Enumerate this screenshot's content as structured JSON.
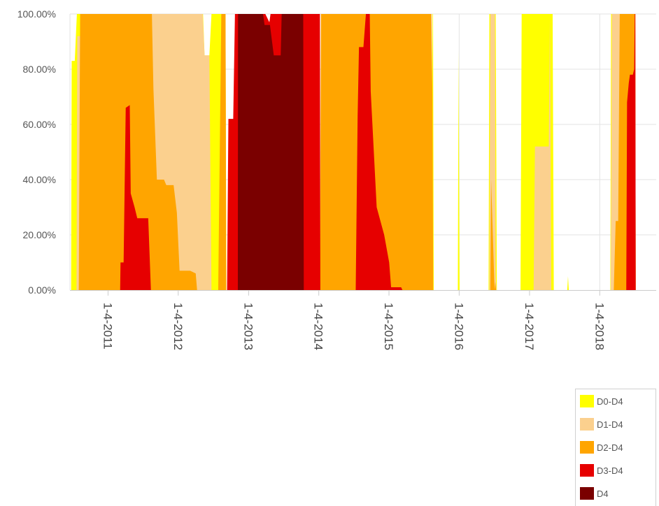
{
  "chart_data": {
    "type": "area",
    "stacking": "overlapping percent areas (each series drawn from 0%)",
    "x_axis": {
      "type": "date",
      "tick_labels": [
        "1-4-2011",
        "1-4-2012",
        "1-4-2013",
        "1-4-2014",
        "1-4-2015",
        "1-4-2016",
        "1-4-2017",
        "1-4-2018",
        "1-4-2019"
      ],
      "range": [
        "2010-06-20",
        "2019-04-01"
      ]
    },
    "y_axis": {
      "tick_labels": [
        "0.00%",
        "20.00%",
        "40.00%",
        "60.00%",
        "80.00%",
        "100.00%"
      ],
      "ylim": [
        0,
        100
      ],
      "unit": "%"
    },
    "grid": true,
    "legend_position": "bottom-right",
    "series": [
      {
        "name": "D0-D4",
        "color": "#ffff00",
        "points": [
          [
            "2010-06-20",
            0
          ],
          [
            "2010-06-26",
            0
          ],
          [
            "2010-06-29",
            83
          ],
          [
            "2010-07-15",
            83
          ],
          [
            "2010-07-26",
            100
          ],
          [
            "2012-02-16",
            100
          ],
          [
            "2012-03-01",
            85
          ],
          [
            "2012-04-18",
            85
          ],
          [
            "2012-04-26",
            100
          ],
          [
            "2012-05-12",
            100
          ],
          [
            "2012-05-20",
            85
          ],
          [
            "2012-06-14",
            85
          ],
          [
            "2012-06-25",
            100
          ],
          [
            "2012-09-06",
            100
          ],
          [
            "2012-09-10",
            0
          ],
          [
            "2015-08-13",
            0
          ],
          [
            "2015-08-18",
            100
          ],
          [
            "2015-08-21",
            100
          ],
          [
            "2015-08-25",
            0
          ],
          [
            "2015-12-28",
            0
          ],
          [
            "2016-01-01",
            87
          ],
          [
            "2016-01-06",
            0
          ],
          [
            "2016-06-05",
            0
          ],
          [
            "2016-06-09",
            100
          ],
          [
            "2016-07-12",
            100
          ],
          [
            "2016-07-18",
            0
          ],
          [
            "2016-11-18",
            0
          ],
          [
            "2016-11-24",
            100
          ],
          [
            "2017-05-04",
            100
          ],
          [
            "2017-05-10",
            0
          ],
          [
            "2017-07-19",
            0
          ],
          [
            "2017-07-23",
            5
          ],
          [
            "2017-07-27",
            0
          ],
          [
            "2018-02-28",
            0
          ],
          [
            "2018-03-04",
            100
          ],
          [
            "2018-07-08",
            100
          ],
          [
            "2018-07-10",
            0
          ],
          [
            "2019-04-01",
            0
          ]
        ]
      },
      {
        "name": "D1-D4",
        "color": "#fbd08e",
        "points": [
          [
            "2010-06-20",
            0
          ],
          [
            "2010-07-24",
            0
          ],
          [
            "2010-07-28",
            92
          ],
          [
            "2010-08-26",
            92
          ],
          [
            "2010-09-02",
            100
          ],
          [
            "2012-05-10",
            100
          ],
          [
            "2012-05-20",
            85
          ],
          [
            "2012-06-14",
            85
          ],
          [
            "2012-06-25",
            0
          ],
          [
            "2012-09-06",
            0
          ],
          [
            "2012-09-10",
            0
          ],
          [
            "2016-06-09",
            0
          ],
          [
            "2016-06-14",
            100
          ],
          [
            "2016-07-08",
            100
          ],
          [
            "2016-07-12",
            5
          ],
          [
            "2016-07-16",
            0
          ],
          [
            "2017-01-25",
            0
          ],
          [
            "2017-02-01",
            52
          ],
          [
            "2017-04-14",
            52
          ],
          [
            "2017-04-20",
            100
          ],
          [
            "2017-04-27",
            0
          ],
          [
            "2018-03-02",
            0
          ],
          [
            "2018-03-08",
            100
          ],
          [
            "2018-07-08",
            100
          ],
          [
            "2018-07-10",
            0
          ],
          [
            "2019-04-01",
            0
          ]
        ]
      },
      {
        "name": "D2-D4",
        "color": "#ffa500",
        "points": [
          [
            "2010-06-20",
            0
          ],
          [
            "2010-08-05",
            0
          ],
          [
            "2010-08-12",
            100
          ],
          [
            "2011-08-20",
            100
          ],
          [
            "2011-08-28",
            73
          ],
          [
            "2011-09-15",
            40
          ],
          [
            "2011-10-22",
            40
          ],
          [
            "2011-11-03",
            38
          ],
          [
            "2011-12-11",
            38
          ],
          [
            "2011-12-28",
            28
          ],
          [
            "2012-01-11",
            7
          ],
          [
            "2012-03-06",
            7
          ],
          [
            "2012-04-04",
            6
          ],
          [
            "2012-04-11",
            0
          ],
          [
            "2012-07-30",
            0
          ],
          [
            "2012-08-15",
            100
          ],
          [
            "2012-09-06",
            100
          ],
          [
            "2012-09-10",
            0
          ],
          [
            "2014-01-10",
            0
          ],
          [
            "2014-01-15",
            100
          ],
          [
            "2015-08-13",
            100
          ],
          [
            "2015-08-18",
            70
          ],
          [
            "2015-08-22",
            0
          ],
          [
            "2016-06-14",
            0
          ],
          [
            "2016-06-18",
            40
          ],
          [
            "2016-07-06",
            0
          ],
          [
            "2016-07-10",
            3
          ],
          [
            "2016-07-14",
            0
          ],
          [
            "2018-03-18",
            0
          ],
          [
            "2018-03-28",
            25
          ],
          [
            "2018-04-10",
            25
          ],
          [
            "2018-04-18",
            100
          ],
          [
            "2018-07-08",
            100
          ],
          [
            "2018-07-10",
            0
          ],
          [
            "2019-04-01",
            0
          ]
        ]
      },
      {
        "name": "D3-D4",
        "color": "#e60000",
        "points": [
          [
            "2010-06-20",
            0
          ],
          [
            "2011-03-08",
            0
          ],
          [
            "2011-03-10",
            10
          ],
          [
            "2011-03-26",
            10
          ],
          [
            "2011-04-06",
            66
          ],
          [
            "2011-04-27",
            67
          ],
          [
            "2011-05-02",
            35
          ],
          [
            "2011-05-22",
            30
          ],
          [
            "2011-06-05",
            26
          ],
          [
            "2011-08-01",
            26
          ],
          [
            "2011-08-15",
            0
          ],
          [
            "2012-09-14",
            0
          ],
          [
            "2012-09-21",
            62
          ],
          [
            "2012-10-16",
            62
          ],
          [
            "2012-10-25",
            100
          ],
          [
            "2013-04-01",
            100
          ],
          [
            "2013-04-22",
            97
          ],
          [
            "2013-04-28",
            100
          ],
          [
            "2013-10-15",
            100
          ],
          [
            "2014-01-10",
            100
          ],
          [
            "2014-01-12",
            0
          ],
          [
            "2014-07-15",
            0
          ],
          [
            "2014-07-25",
            63
          ],
          [
            "2014-08-01",
            88
          ],
          [
            "2014-08-24",
            88
          ],
          [
            "2014-09-06",
            100
          ],
          [
            "2014-09-26",
            100
          ],
          [
            "2014-10-01",
            72
          ],
          [
            "2014-11-01",
            30
          ],
          [
            "2014-12-10",
            20
          ],
          [
            "2015-01-05",
            10
          ],
          [
            "2015-01-15",
            1
          ],
          [
            "2015-03-08",
            1
          ],
          [
            "2015-03-15",
            0
          ],
          [
            "2018-05-22",
            0
          ],
          [
            "2018-05-26",
            68
          ],
          [
            "2018-06-04",
            75
          ],
          [
            "2018-06-10",
            78
          ],
          [
            "2018-06-25",
            78
          ],
          [
            "2018-07-02",
            80
          ],
          [
            "2018-07-05",
            100
          ],
          [
            "2018-07-08",
            100
          ],
          [
            "2018-07-10",
            0
          ],
          [
            "2019-04-01",
            0
          ]
        ]
      },
      {
        "name": "D4",
        "color": "#7a0000",
        "points": [
          [
            "2010-06-20",
            0
          ],
          [
            "2012-11-09",
            0
          ],
          [
            "2012-11-10",
            100
          ],
          [
            "2013-03-20",
            100
          ],
          [
            "2013-03-28",
            96
          ],
          [
            "2013-04-25",
            96
          ],
          [
            "2013-05-15",
            85
          ],
          [
            "2013-06-20",
            85
          ],
          [
            "2013-06-25",
            100
          ],
          [
            "2013-10-15",
            100
          ],
          [
            "2013-10-18",
            0
          ],
          [
            "2019-04-01",
            0
          ]
        ]
      }
    ]
  }
}
